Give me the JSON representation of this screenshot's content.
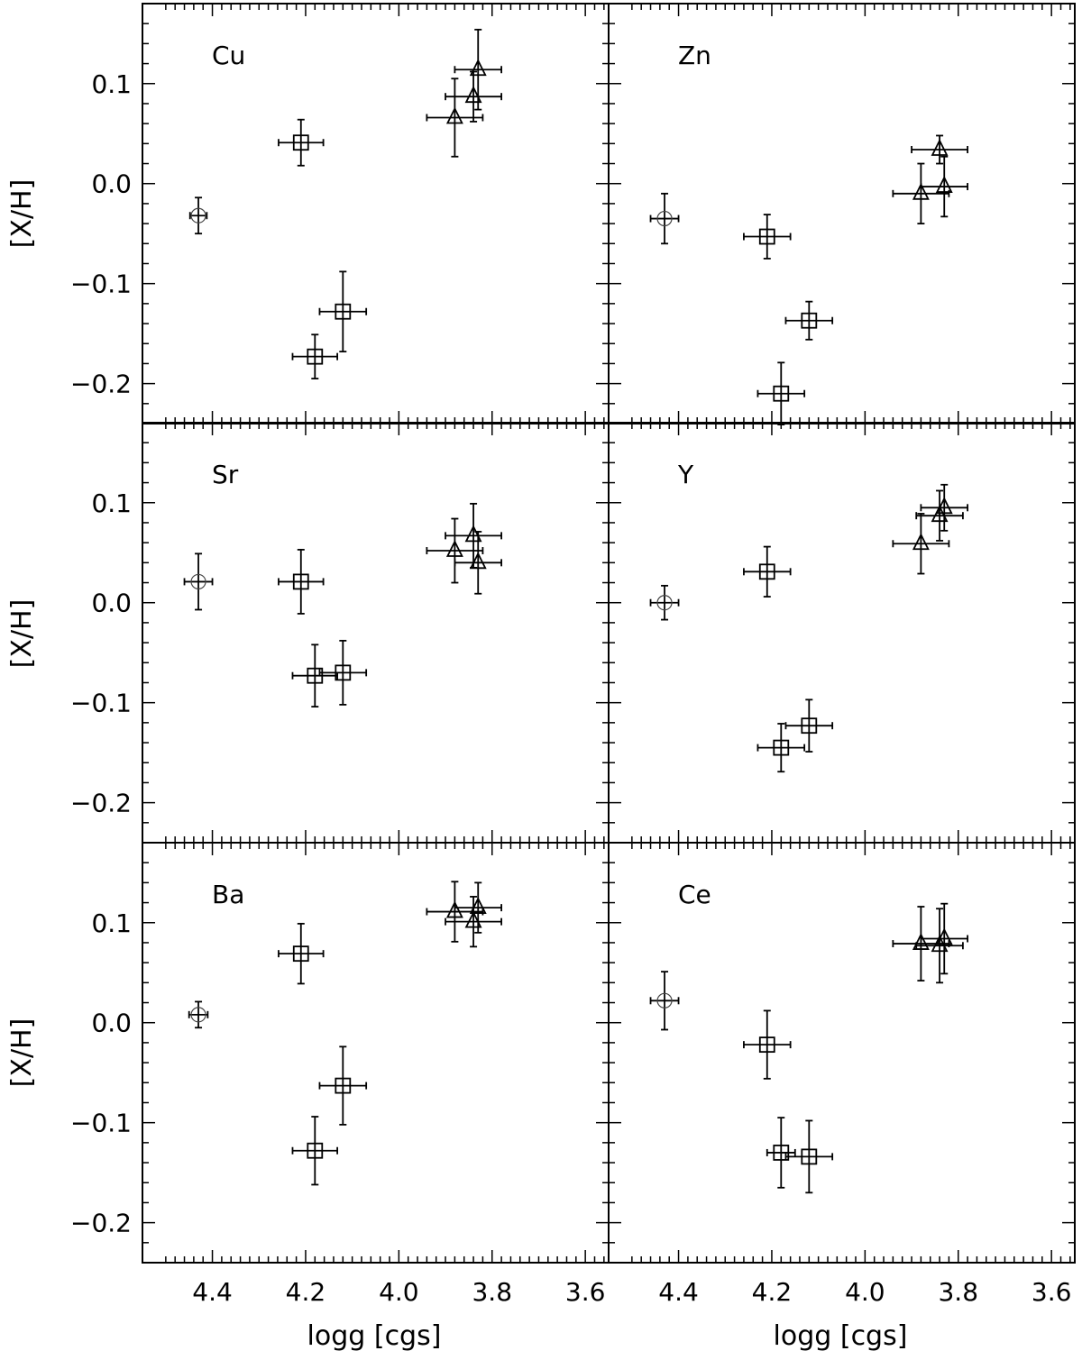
{
  "figure": {
    "xlabel": "logg [cgs]",
    "ylabel": "[X/H]"
  },
  "chart_data": [
    {
      "type": "scatter",
      "title": "Cu",
      "xlabel": "logg [cgs]",
      "ylabel": "[X/H]",
      "xlim": [
        4.55,
        3.55
      ],
      "ylim": [
        -0.24,
        0.18
      ],
      "x_ticks": [
        "4.4",
        "4.2",
        "4.0",
        "3.8",
        "3.6"
      ],
      "y_ticks": [
        "0.1",
        "0.0",
        "−0.1",
        "−0.2"
      ],
      "grid": false,
      "points": [
        {
          "marker": "circle-plus",
          "x": 4.43,
          "y": -0.032,
          "xerr": 0.018,
          "yerr": 0.018
        },
        {
          "marker": "square",
          "x": 4.21,
          "y": 0.041,
          "xerr": 0.048,
          "yerr": 0.023
        },
        {
          "marker": "square",
          "x": 4.18,
          "y": -0.173,
          "xerr": 0.048,
          "yerr": 0.022
        },
        {
          "marker": "square",
          "x": 4.12,
          "y": -0.128,
          "xerr": 0.05,
          "yerr": 0.04
        },
        {
          "marker": "triangle",
          "x": 3.88,
          "y": 0.066,
          "xerr": 0.06,
          "yerr": 0.039
        },
        {
          "marker": "triangle",
          "x": 3.84,
          "y": 0.087,
          "xerr": 0.06,
          "yerr": 0.025
        },
        {
          "marker": "triangle",
          "x": 3.83,
          "y": 0.114,
          "xerr": 0.05,
          "yerr": 0.04
        }
      ]
    },
    {
      "type": "scatter",
      "title": "Zn",
      "xlabel": "logg [cgs]",
      "ylabel": "[X/H]",
      "xlim": [
        4.55,
        3.55
      ],
      "ylim": [
        -0.24,
        0.18
      ],
      "x_ticks": [
        "4.4",
        "4.2",
        "4.0",
        "3.8",
        "3.6"
      ],
      "y_ticks": [
        "0.1",
        "0.0",
        "−0.1",
        "−0.2"
      ],
      "grid": false,
      "points": [
        {
          "marker": "circle-plus",
          "x": 4.43,
          "y": -0.035,
          "xerr": 0.03,
          "yerr": 0.025
        },
        {
          "marker": "square",
          "x": 4.21,
          "y": -0.053,
          "xerr": 0.05,
          "yerr": 0.022
        },
        {
          "marker": "square",
          "x": 4.12,
          "y": -0.137,
          "xerr": 0.05,
          "yerr": 0.019
        },
        {
          "marker": "square",
          "x": 4.18,
          "y": -0.21,
          "xerr": 0.05,
          "yerr": 0.031
        },
        {
          "marker": "triangle",
          "x": 3.88,
          "y": -0.01,
          "xerr": 0.06,
          "yerr": 0.03
        },
        {
          "marker": "triangle",
          "x": 3.84,
          "y": 0.034,
          "xerr": 0.06,
          "yerr": 0.014
        },
        {
          "marker": "triangle",
          "x": 3.83,
          "y": -0.003,
          "xerr": 0.05,
          "yerr": 0.03
        }
      ]
    },
    {
      "type": "scatter",
      "title": "Sr",
      "xlabel": "logg [cgs]",
      "ylabel": "[X/H]",
      "xlim": [
        4.55,
        3.55
      ],
      "ylim": [
        -0.24,
        0.18
      ],
      "x_ticks": [
        "4.4",
        "4.2",
        "4.0",
        "3.8",
        "3.6"
      ],
      "y_ticks": [
        "0.1",
        "0.0",
        "−0.1",
        "−0.2"
      ],
      "grid": false,
      "points": [
        {
          "marker": "circle-plus",
          "x": 4.43,
          "y": 0.021,
          "xerr": 0.03,
          "yerr": 0.028
        },
        {
          "marker": "square",
          "x": 4.21,
          "y": 0.021,
          "xerr": 0.048,
          "yerr": 0.032
        },
        {
          "marker": "square",
          "x": 4.18,
          "y": -0.073,
          "xerr": 0.048,
          "yerr": 0.031
        },
        {
          "marker": "square",
          "x": 4.12,
          "y": -0.07,
          "xerr": 0.05,
          "yerr": 0.032
        },
        {
          "marker": "triangle",
          "x": 3.88,
          "y": 0.052,
          "xerr": 0.06,
          "yerr": 0.032
        },
        {
          "marker": "triangle",
          "x": 3.84,
          "y": 0.067,
          "xerr": 0.06,
          "yerr": 0.032
        },
        {
          "marker": "triangle",
          "x": 3.83,
          "y": 0.04,
          "xerr": 0.05,
          "yerr": 0.031
        }
      ]
    },
    {
      "type": "scatter",
      "title": "Y",
      "xlabel": "logg [cgs]",
      "ylabel": "[X/H]",
      "xlim": [
        4.55,
        3.55
      ],
      "ylim": [
        -0.24,
        0.18
      ],
      "x_ticks": [
        "4.4",
        "4.2",
        "4.0",
        "3.8",
        "3.6"
      ],
      "y_ticks": [
        "0.1",
        "0.0",
        "−0.1",
        "−0.2"
      ],
      "grid": false,
      "points": [
        {
          "marker": "circle-plus",
          "x": 4.43,
          "y": 0.0,
          "xerr": 0.03,
          "yerr": 0.017
        },
        {
          "marker": "square",
          "x": 4.21,
          "y": 0.031,
          "xerr": 0.05,
          "yerr": 0.025
        },
        {
          "marker": "square",
          "x": 4.18,
          "y": -0.145,
          "xerr": 0.05,
          "yerr": 0.024
        },
        {
          "marker": "square",
          "x": 4.12,
          "y": -0.123,
          "xerr": 0.05,
          "yerr": 0.026
        },
        {
          "marker": "triangle",
          "x": 3.88,
          "y": 0.059,
          "xerr": 0.06,
          "yerr": 0.03
        },
        {
          "marker": "triangle",
          "x": 3.84,
          "y": 0.087,
          "xerr": 0.05,
          "yerr": 0.025
        },
        {
          "marker": "triangle",
          "x": 3.83,
          "y": 0.095,
          "xerr": 0.05,
          "yerr": 0.023
        }
      ]
    },
    {
      "type": "scatter",
      "title": "Ba",
      "xlabel": "logg [cgs]",
      "ylabel": "[X/H]",
      "xlim": [
        4.55,
        3.55
      ],
      "ylim": [
        -0.24,
        0.18
      ],
      "x_ticks": [
        "4.4",
        "4.2",
        "4.0",
        "3.8",
        "3.6"
      ],
      "y_ticks": [
        "0.1",
        "0.0",
        "−0.1",
        "−0.2"
      ],
      "grid": false,
      "points": [
        {
          "marker": "circle-plus",
          "x": 4.43,
          "y": 0.008,
          "xerr": 0.02,
          "yerr": 0.013
        },
        {
          "marker": "square",
          "x": 4.21,
          "y": 0.069,
          "xerr": 0.048,
          "yerr": 0.03
        },
        {
          "marker": "square",
          "x": 4.18,
          "y": -0.128,
          "xerr": 0.048,
          "yerr": 0.034
        },
        {
          "marker": "square",
          "x": 4.12,
          "y": -0.063,
          "xerr": 0.05,
          "yerr": 0.039
        },
        {
          "marker": "triangle",
          "x": 3.88,
          "y": 0.111,
          "xerr": 0.06,
          "yerr": 0.03
        },
        {
          "marker": "triangle",
          "x": 3.84,
          "y": 0.101,
          "xerr": 0.06,
          "yerr": 0.025
        },
        {
          "marker": "triangle",
          "x": 3.83,
          "y": 0.115,
          "xerr": 0.05,
          "yerr": 0.025
        }
      ]
    },
    {
      "type": "scatter",
      "title": "Ce",
      "xlabel": "logg [cgs]",
      "ylabel": "[X/H]",
      "xlim": [
        4.55,
        3.55
      ],
      "ylim": [
        -0.24,
        0.18
      ],
      "x_ticks": [
        "4.4",
        "4.2",
        "4.0",
        "3.8",
        "3.6"
      ],
      "y_ticks": [
        "0.1",
        "0.0",
        "−0.1",
        "−0.2"
      ],
      "grid": false,
      "points": [
        {
          "marker": "circle-plus",
          "x": 4.43,
          "y": 0.022,
          "xerr": 0.03,
          "yerr": 0.029
        },
        {
          "marker": "square",
          "x": 4.21,
          "y": -0.022,
          "xerr": 0.05,
          "yerr": 0.034
        },
        {
          "marker": "square",
          "x": 4.18,
          "y": -0.13,
          "xerr": 0.03,
          "yerr": 0.035
        },
        {
          "marker": "square",
          "x": 4.12,
          "y": -0.134,
          "xerr": 0.05,
          "yerr": 0.036
        },
        {
          "marker": "triangle",
          "x": 3.88,
          "y": 0.079,
          "xerr": 0.06,
          "yerr": 0.037
        },
        {
          "marker": "triangle",
          "x": 3.84,
          "y": 0.077,
          "xerr": 0.05,
          "yerr": 0.037
        },
        {
          "marker": "triangle",
          "x": 3.83,
          "y": 0.084,
          "xerr": 0.05,
          "yerr": 0.035
        }
      ]
    }
  ]
}
